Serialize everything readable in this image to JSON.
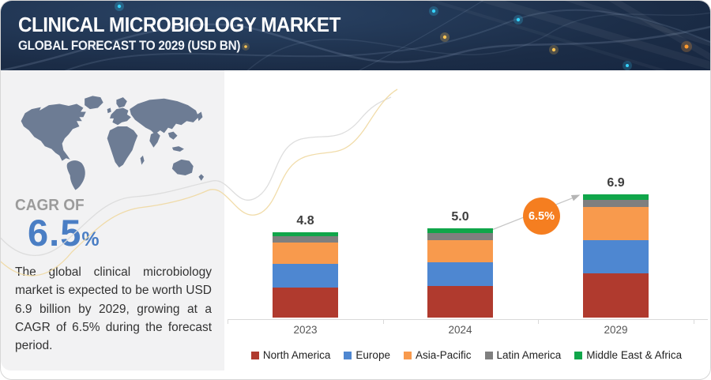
{
  "header": {
    "title": "CLINICAL MICROBIOLOGY MARKET",
    "subtitle": "GLOBAL FORECAST TO 2029 (USD BN)"
  },
  "sidebar": {
    "map_icon": "world-map",
    "cagr_label": "CAGR OF",
    "cagr_value": "6.5",
    "cagr_unit": "%",
    "cagr_color": "#4a7ec4",
    "description": "The global clinical microbiology market is expected to be worth USD 6.9 billion by 2029, growing at a CAGR of 6.5% during the forecast period."
  },
  "chart_data": {
    "type": "bar",
    "stacked": true,
    "unit": "USD BN",
    "categories": [
      "2023",
      "2024",
      "2029"
    ],
    "series": [
      {
        "name": "North America",
        "color": "#b03a2e",
        "values": [
          1.7,
          1.75,
          2.5
        ]
      },
      {
        "name": "Europe",
        "color": "#4e87d1",
        "values": [
          1.3,
          1.35,
          1.85
        ]
      },
      {
        "name": "Asia-Pacific",
        "color": "#f89a4d",
        "values": [
          1.2,
          1.25,
          1.85
        ]
      },
      {
        "name": "Latin America",
        "color": "#7f7f7f",
        "values": [
          0.37,
          0.38,
          0.4
        ]
      },
      {
        "name": "Middle East & Africa",
        "color": "#10a64a",
        "values": [
          0.23,
          0.27,
          0.3
        ]
      }
    ],
    "totals": [
      4.8,
      5.0,
      6.9
    ],
    "total_labels": [
      "4.8",
      "5.0",
      "6.9"
    ],
    "annotation": {
      "text": "6.5%",
      "color": "#f57e20"
    },
    "legend_position": "bottom",
    "grid": false,
    "xlabel": "",
    "ylabel": ""
  }
}
